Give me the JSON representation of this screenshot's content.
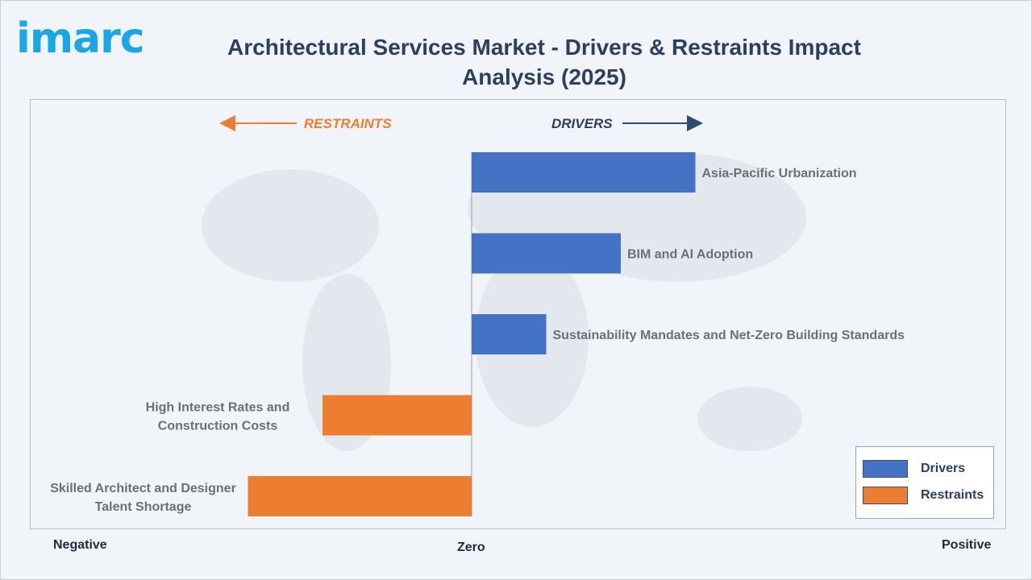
{
  "logo": {
    "text": "imarc"
  },
  "title": "Architectural Services Market - Drivers & Restraints Impact Analysis (2025)",
  "axis": {
    "negative": "Negative",
    "zero": "Zero",
    "positive": "Positive"
  },
  "directions": {
    "restraints": "RESTRAINTS",
    "drivers": "DRIVERS"
  },
  "legend": [
    {
      "label": "Drivers",
      "color": "#4472c4"
    },
    {
      "label": "Restraints",
      "color": "#ed7d31"
    }
  ],
  "colors": {
    "driver": "#4472c4",
    "restraint": "#ed7d31",
    "title": "#2c3e63",
    "logo": "#1aa7e8"
  },
  "chart_data": {
    "type": "bar",
    "orientation": "horizontal",
    "title": "Architectural Services Market - Drivers & Restraints Impact Analysis (2025)",
    "categories": [
      "Asia-Pacific Urbanization",
      "BIM and AI Adoption",
      "Sustainability Mandates and Net-Zero Building Standards",
      "High Interest Rates and Construction Costs",
      "Skilled Architect and Designer Talent Shortage"
    ],
    "values": [
      3.0,
      2.0,
      1.0,
      -2.0,
      -3.0
    ],
    "series_type": [
      "Drivers",
      "Drivers",
      "Drivers",
      "Restraints",
      "Restraints"
    ],
    "xlim": [
      -6,
      6
    ],
    "grid": false,
    "legend_position": "bottom-right"
  }
}
